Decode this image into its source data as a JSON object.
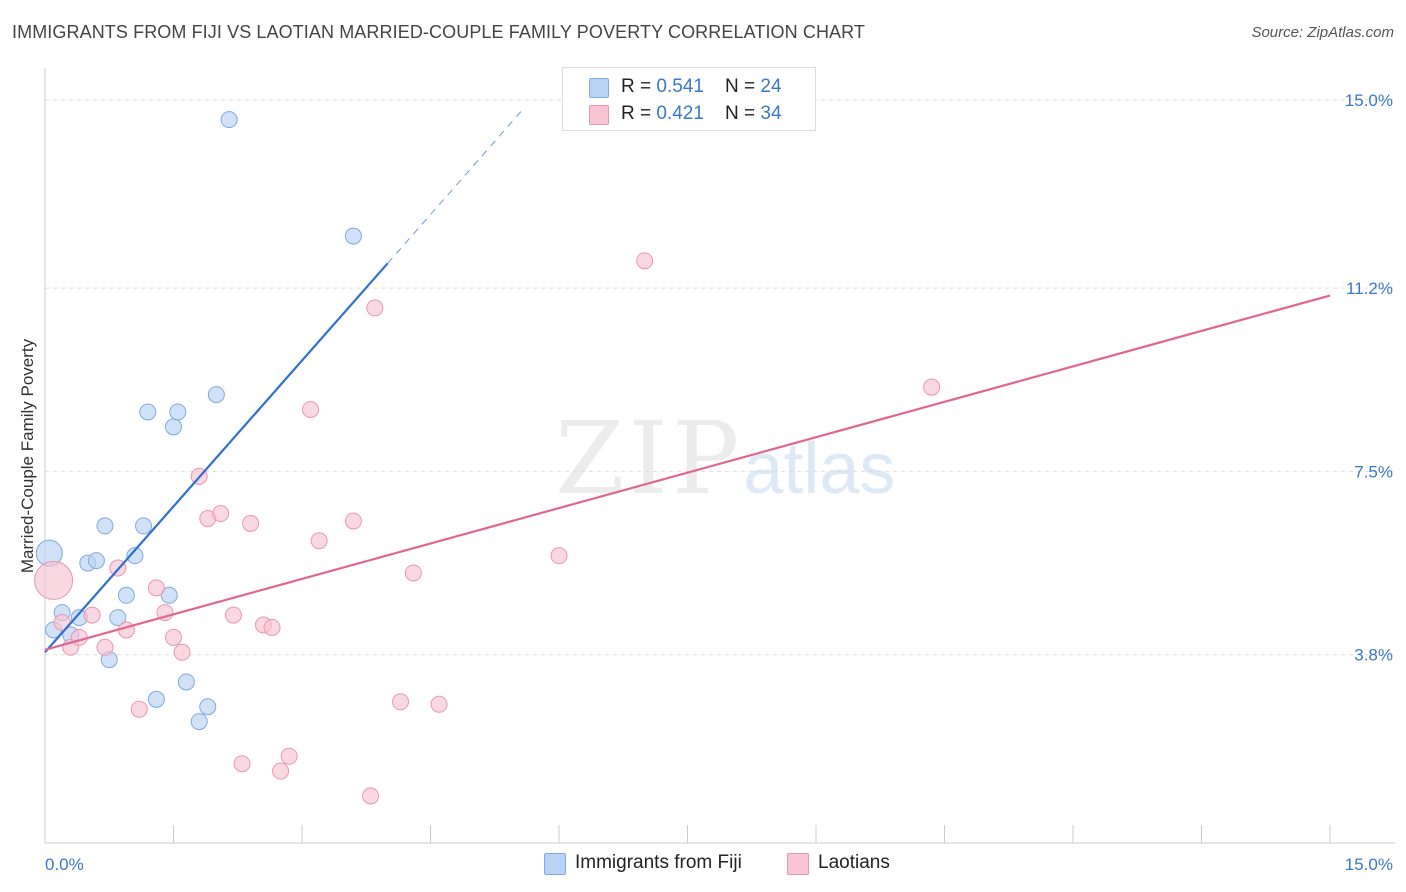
{
  "header": {
    "title": "IMMIGRANTS FROM FIJI VS LAOTIAN MARRIED-COUPLE FAMILY POVERTY CORRELATION CHART",
    "source": "Source: ZipAtlas.com"
  },
  "watermark": {
    "zip": "ZIP",
    "atlas": "atlas"
  },
  "legend": {
    "rows": [
      {
        "r_label": "R = ",
        "r_value": "0.541",
        "n_label": "N = ",
        "n_value": "24",
        "color": "#b9d3f5"
      },
      {
        "r_label": "R = ",
        "r_value": "0.421",
        "n_label": "N = ",
        "n_value": "34",
        "color": "#f8c3d3"
      }
    ]
  },
  "bottom_legend": {
    "fiji": {
      "label": "Immigrants from Fiji",
      "color": "#b9d3f5"
    },
    "laotians": {
      "label": "Laotians",
      "color": "#f8c3d3"
    }
  },
  "colors": {
    "fiji_fill": "#b9d3f5",
    "fiji_stroke": "#7fa9e0",
    "fiji_line": "#2f6fcf",
    "lao_fill": "#f8c3d3",
    "lao_stroke": "#ea96b2",
    "lao_line": "#e0668f",
    "tick_text": "#3a78c9",
    "grid": "#dddddd"
  },
  "chart_data": {
    "type": "scatter",
    "title": "IMMIGRANTS FROM FIJI VS LAOTIAN MARRIED-COUPLE FAMILY POVERTY CORRELATION CHART",
    "xlabel": "",
    "ylabel": "Married-Couple Family Poverty",
    "xlim": [
      0,
      15
    ],
    "ylim": [
      0,
      15.4
    ],
    "x_tick_labels": [
      {
        "value": 0,
        "label": "0.0%"
      },
      {
        "value": 15,
        "label": "15.0%"
      }
    ],
    "y_tick_labels": [
      {
        "value": 3.8,
        "label": "3.8%"
      },
      {
        "value": 7.5,
        "label": "7.5%"
      },
      {
        "value": 11.2,
        "label": "11.2%"
      },
      {
        "value": 15.0,
        "label": "15.0%"
      }
    ],
    "grid": true,
    "legend_position": "top-center",
    "series": [
      {
        "name": "Immigrants from Fiji",
        "R": 0.541,
        "N": 24,
        "points": [
          [
            0.05,
            5.85
          ],
          [
            0.1,
            4.3
          ],
          [
            0.2,
            4.65
          ],
          [
            0.3,
            4.2
          ],
          [
            0.4,
            4.55
          ],
          [
            0.5,
            5.65
          ],
          [
            0.6,
            5.7
          ],
          [
            0.7,
            6.4
          ],
          [
            0.75,
            3.7
          ],
          [
            0.85,
            4.55
          ],
          [
            0.95,
            5.0
          ],
          [
            1.05,
            5.8
          ],
          [
            1.15,
            6.4
          ],
          [
            1.2,
            8.7
          ],
          [
            1.3,
            2.9
          ],
          [
            1.45,
            5.0
          ],
          [
            1.5,
            8.4
          ],
          [
            1.55,
            8.7
          ],
          [
            1.65,
            3.25
          ],
          [
            1.8,
            2.45
          ],
          [
            1.9,
            2.75
          ],
          [
            2.0,
            9.05
          ],
          [
            2.15,
            14.6
          ],
          [
            3.6,
            12.25
          ]
        ],
        "trend": {
          "x0": 0.0,
          "y0": 3.85,
          "x1": 4.0,
          "y1": 11.7,
          "dashed_to_x": 5.6,
          "dashed_to_y": 14.85
        }
      },
      {
        "name": "Laotians",
        "R": 0.421,
        "N": 34,
        "points": [
          [
            0.1,
            5.3
          ],
          [
            0.2,
            4.45
          ],
          [
            0.3,
            3.95
          ],
          [
            0.4,
            4.15
          ],
          [
            0.55,
            4.6
          ],
          [
            0.7,
            3.95
          ],
          [
            0.85,
            5.55
          ],
          [
            0.95,
            4.3
          ],
          [
            1.1,
            2.7
          ],
          [
            1.3,
            5.15
          ],
          [
            1.4,
            4.65
          ],
          [
            1.5,
            4.15
          ],
          [
            1.6,
            3.85
          ],
          [
            1.8,
            7.4
          ],
          [
            1.9,
            6.55
          ],
          [
            2.05,
            6.65
          ],
          [
            2.2,
            4.6
          ],
          [
            2.3,
            1.6
          ],
          [
            2.4,
            6.45
          ],
          [
            2.55,
            4.4
          ],
          [
            2.65,
            4.35
          ],
          [
            2.75,
            1.45
          ],
          [
            2.85,
            1.75
          ],
          [
            3.1,
            8.75
          ],
          [
            3.2,
            6.1
          ],
          [
            3.6,
            6.5
          ],
          [
            3.8,
            0.95
          ],
          [
            3.85,
            10.8
          ],
          [
            4.15,
            2.85
          ],
          [
            4.3,
            5.45
          ],
          [
            4.6,
            2.8
          ],
          [
            6.0,
            5.8
          ],
          [
            7.0,
            11.75
          ],
          [
            10.35,
            9.2
          ]
        ],
        "trend": {
          "x0": 0.0,
          "y0": 3.9,
          "x1": 15.0,
          "y1": 11.05
        }
      }
    ]
  }
}
